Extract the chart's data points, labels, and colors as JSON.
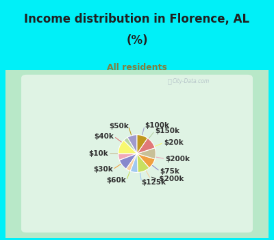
{
  "title_line1": "Income distribution in Florence, AL",
  "title_line2": "(%)",
  "subtitle": "All residents",
  "labels": [
    "$100k",
    "$150k",
    "$20k",
    "$200k",
    "$75k",
    "> $200k",
    "$125k",
    "$60k",
    "$30k",
    "$10k",
    "$40k",
    "$50k"
  ],
  "values": [
    8.5,
    4.0,
    12.5,
    5.5,
    9.5,
    4.0,
    6.5,
    10.5,
    9.0,
    9.5,
    10.5,
    9.5
  ],
  "colors": [
    "#a09acc",
    "#b8d4a8",
    "#f8f870",
    "#f0a8b8",
    "#8888cc",
    "#f8d0a0",
    "#a0c8f0",
    "#c8e060",
    "#f0a040",
    "#c8c098",
    "#e07878",
    "#c09820"
  ],
  "bg_cyan": "#00f0f8",
  "bg_chart_edge": "#b8e8c8",
  "bg_chart_center": "#f0f8f0",
  "title_color": "#202020",
  "subtitle_color": "#808040",
  "label_color": "#303030",
  "watermark": "City-Data.com",
  "title_fontsize": 12,
  "subtitle_fontsize": 9,
  "label_fontsize": 7.5
}
